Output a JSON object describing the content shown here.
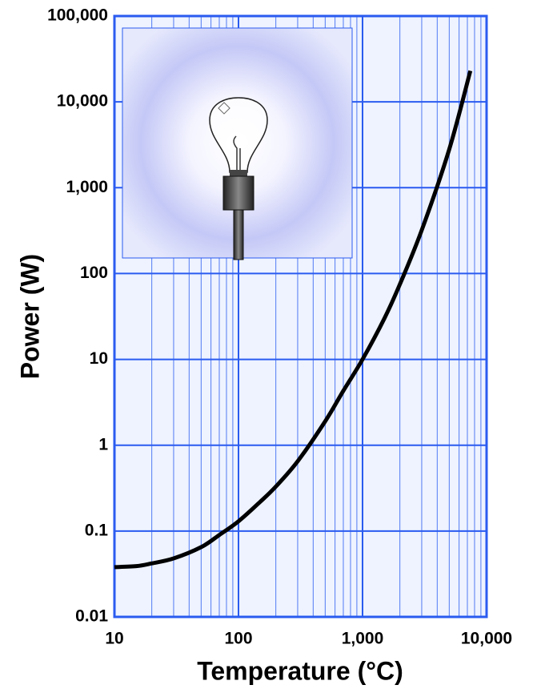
{
  "chart_data": {
    "type": "line",
    "x_label": "Temperature (°C)",
    "y_label": "Power (W)",
    "x": [
      10,
      15,
      20,
      30,
      50,
      70,
      100,
      150,
      200,
      300,
      500,
      700,
      1000,
      1500,
      2000,
      3000,
      5000,
      7400
    ],
    "series": [
      {
        "name": "Power",
        "color": "#000000",
        "values": [
          0.038,
          0.039,
          0.042,
          0.048,
          0.065,
          0.09,
          0.13,
          0.22,
          0.33,
          0.65,
          1.9,
          4.3,
          10,
          30,
          75,
          320,
          2800,
          23000
        ]
      }
    ],
    "xlim": [
      10,
      10000
    ],
    "ylim": [
      0.01,
      100000
    ],
    "xticks": [
      10,
      100,
      {
        "value": 1000,
        "label": "1,000"
      },
      {
        "value": 10000,
        "label": "10,000"
      }
    ],
    "yticks": [
      0.01,
      0.1,
      1,
      10,
      100,
      {
        "value": 1000,
        "label": "1,000"
      },
      {
        "value": 10000,
        "label": "10,000"
      },
      {
        "value": 100000,
        "label": "100,000"
      }
    ],
    "x_log": true,
    "y_log": true,
    "grid": true,
    "grid_color": "#2a5bf0",
    "background": "#eef3ff"
  }
}
